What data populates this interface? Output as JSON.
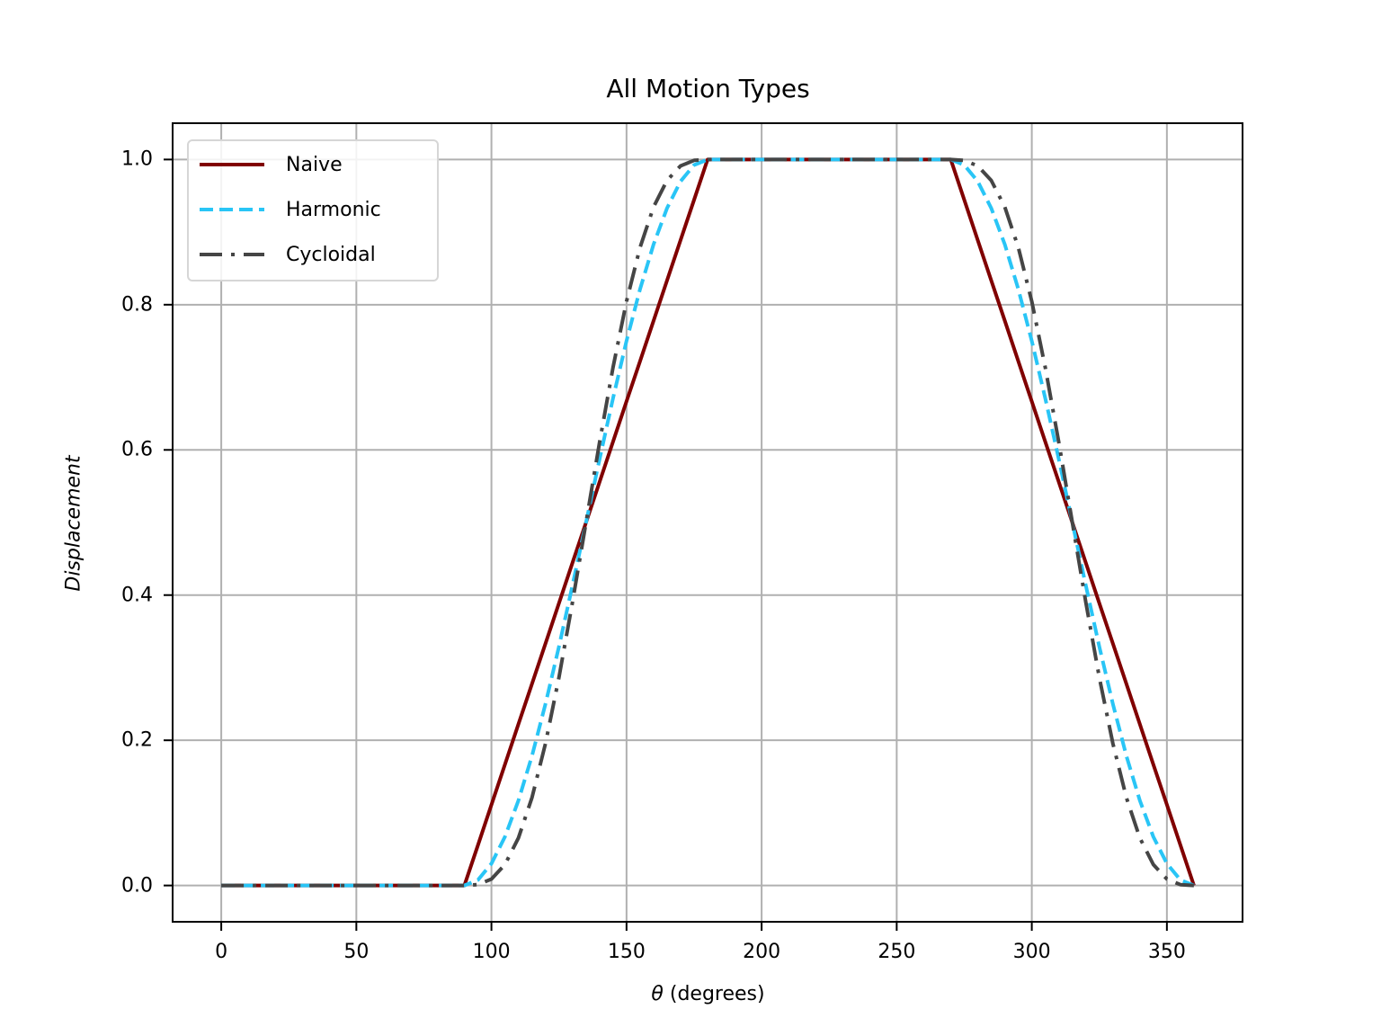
{
  "chart_data": {
    "type": "line",
    "title": "All Motion Types",
    "xlabel": "θ (degrees)",
    "ylabel": "Displacement",
    "xlim": [
      -18,
      378
    ],
    "ylim": [
      -0.05,
      1.05
    ],
    "grid": true,
    "legend_position": "upper left",
    "xticks": [
      0,
      50,
      100,
      150,
      200,
      250,
      300,
      350
    ],
    "xtick_labels": [
      "0",
      "50",
      "100",
      "150",
      "200",
      "250",
      "300",
      "350"
    ],
    "yticks": [
      0.0,
      0.2,
      0.4,
      0.6,
      0.8,
      1.0
    ],
    "ytick_labels": [
      "0.0",
      "0.2",
      "0.4",
      "0.6",
      "0.8",
      "1.0"
    ],
    "x": [
      0,
      90,
      95,
      100,
      105,
      110,
      115,
      120,
      125,
      130,
      135,
      140,
      145,
      150,
      155,
      160,
      165,
      170,
      175,
      180,
      270,
      275,
      280,
      285,
      290,
      295,
      300,
      305,
      310,
      315,
      320,
      325,
      330,
      335,
      340,
      345,
      350,
      355,
      360
    ],
    "series": [
      {
        "name": "Naive",
        "color": "#800000",
        "style": "solid",
        "values": [
          0,
          0,
          0.0556,
          0.1111,
          0.1667,
          0.2222,
          0.2778,
          0.3333,
          0.3889,
          0.4444,
          0.5,
          0.5556,
          0.6111,
          0.6667,
          0.7222,
          0.7778,
          0.8333,
          0.8889,
          0.9444,
          1,
          1,
          0.9444,
          0.8889,
          0.8333,
          0.7778,
          0.7222,
          0.6667,
          0.6111,
          0.5556,
          0.5,
          0.4444,
          0.3889,
          0.3333,
          0.2778,
          0.2222,
          0.1667,
          0.1111,
          0.0556,
          0
        ]
      },
      {
        "name": "Harmonic",
        "color": "#29c5f6",
        "style": "dashed",
        "values": [
          0,
          0,
          0.0076,
          0.0302,
          0.067,
          0.117,
          0.1786,
          0.25,
          0.329,
          0.4132,
          0.5,
          0.5868,
          0.671,
          0.75,
          0.8214,
          0.883,
          0.933,
          0.9698,
          0.9924,
          1,
          1,
          0.9924,
          0.9698,
          0.933,
          0.883,
          0.8214,
          0.75,
          0.671,
          0.5868,
          0.5,
          0.4132,
          0.329,
          0.25,
          0.1786,
          0.117,
          0.067,
          0.0302,
          0.0076,
          0
        ]
      },
      {
        "name": "Cycloidal",
        "color": "#454545",
        "style": "dashdot",
        "values": [
          0,
          0,
          0.0012,
          0.0088,
          0.0288,
          0.0655,
          0.1211,
          0.1955,
          0.2866,
          0.39,
          0.5,
          0.61,
          0.7134,
          0.8045,
          0.8789,
          0.9345,
          0.9712,
          0.9912,
          0.9988,
          1,
          1,
          0.9988,
          0.9912,
          0.9712,
          0.9345,
          0.8789,
          0.8045,
          0.7134,
          0.61,
          0.5,
          0.39,
          0.2866,
          0.1955,
          0.1211,
          0.0655,
          0.0288,
          0.0088,
          0.0012,
          0
        ]
      }
    ]
  }
}
